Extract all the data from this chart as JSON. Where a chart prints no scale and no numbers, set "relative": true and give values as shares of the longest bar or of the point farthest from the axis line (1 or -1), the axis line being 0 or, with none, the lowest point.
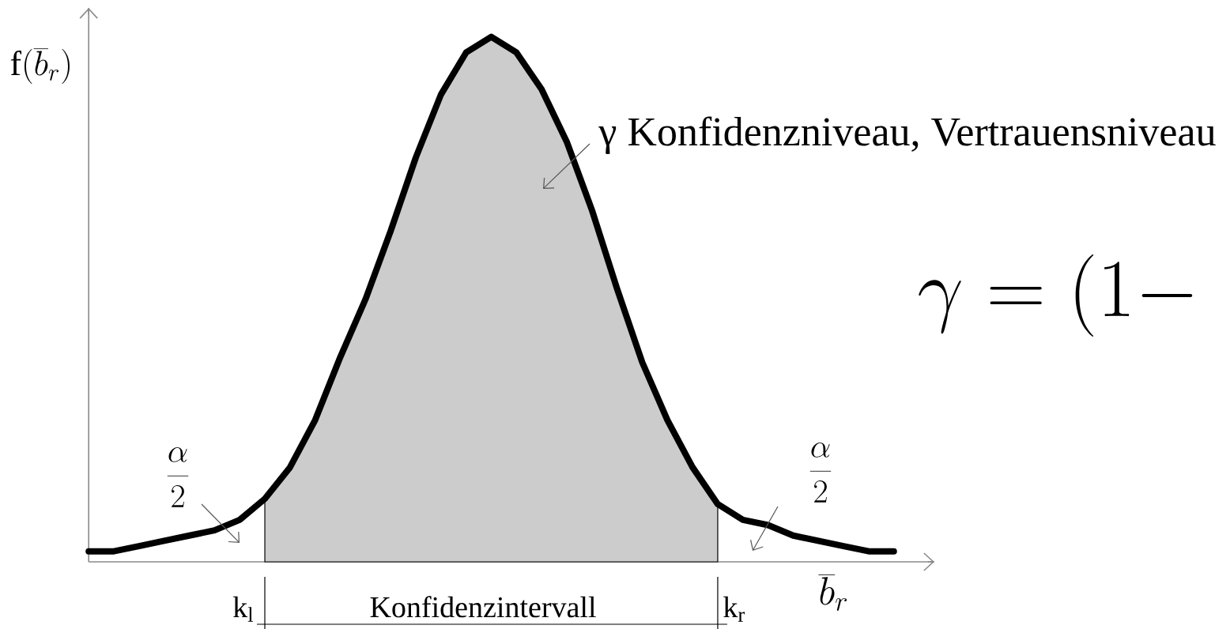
{
  "chart_data": {
    "type": "line",
    "relative": true,
    "xlabel": "\\overline{b}_{r}",
    "ylabel": "\\mathrm{f}(\\overline{b}_{r})",
    "categories": [
      null,
      null,
      null,
      null,
      null,
      null,
      null,
      null,
      null,
      null,
      null,
      null,
      null,
      null,
      null,
      null,
      null,
      null,
      null,
      null,
      null,
      null,
      null,
      null,
      null,
      null,
      null,
      null,
      null,
      null,
      null,
      null,
      null
    ],
    "series": [
      {
        "type": "area",
        "color": "#cccccc",
        "values": [
          null,
          null,
          null,
          null,
          null,
          null,
          null,
          0.12,
          0.18,
          0.27,
          0.39,
          0.5,
          0.63,
          0.77,
          0.89,
          0.97,
          1,
          0.97,
          0.9,
          0.8,
          0.67,
          0.52,
          0.38,
          0.27,
          0.18,
          0.11,
          null,
          null,
          null,
          null,
          null,
          null,
          null
        ]
      },
      {
        "color": "#000000",
        "values": [
          0.02,
          0.02,
          0.03,
          0.04,
          0.05,
          0.06,
          0.08,
          0.12,
          0.18,
          0.27,
          0.39,
          0.5,
          0.63,
          0.77,
          0.89,
          0.97,
          1,
          0.97,
          0.9,
          0.8,
          0.67,
          0.52,
          0.38,
          0.27,
          0.18,
          0.11,
          0.08,
          0.07,
          0.05,
          0.04,
          0.03,
          0.02,
          0.02
        ]
      }
    ],
    "annotations": [
      "γ Konfidenzniveau, Vertrauensniveau",
      "\\frac{\\alpha}{2}",
      "\\frac{\\alpha}{2}",
      "\\gamma = (1 -",
      "k$_{l}$",
      "Konfidenzintervall",
      "k$_{r}$"
    ]
  }
}
